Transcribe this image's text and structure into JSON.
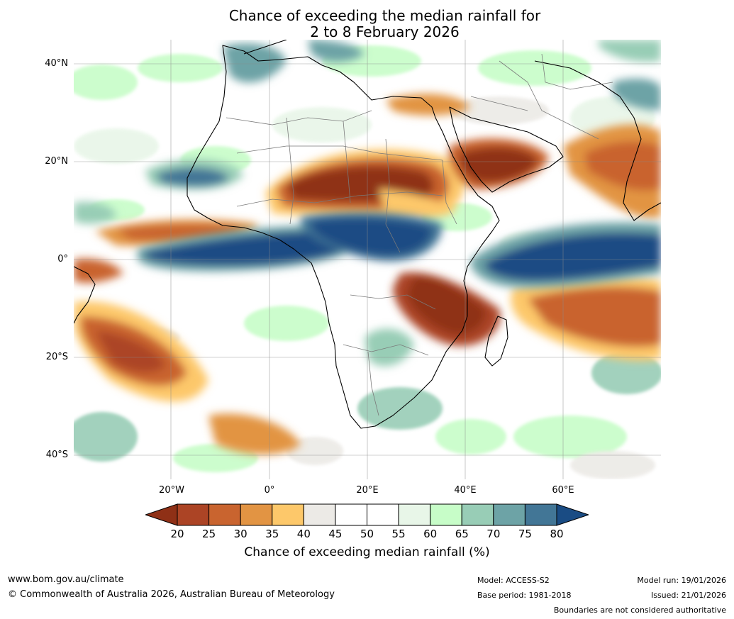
{
  "title": {
    "line1": "Chance of exceeding the median rainfall for",
    "line2": "2 to 8 February 2026"
  },
  "axes": {
    "lat_labels": [
      "40°N",
      "20°N",
      "0°",
      "20°S",
      "40°S"
    ],
    "lon_labels": [
      "20°W",
      "0°",
      "20°E",
      "40°E",
      "60°E"
    ]
  },
  "colorbar": {
    "ticks": [
      "20",
      "25",
      "30",
      "35",
      "40",
      "45",
      "50",
      "55",
      "60",
      "65",
      "70",
      "75",
      "80"
    ],
    "colors": [
      "#8f3016",
      "#ac4425",
      "#c9642f",
      "#e29443",
      "#fdc86a",
      "#eceae6",
      "#ffffff",
      "#ffffff",
      "#e8f6e8",
      "#c7fdc8",
      "#98cdb6",
      "#6da3a6",
      "#427696",
      "#1a4c84"
    ],
    "title": "Chance of exceeding median rainfall (%)"
  },
  "footer": {
    "website": "www.bom.gov.au/climate",
    "copyright": "© Commonwealth of Australia 2026, Australian Bureau of Meteorology",
    "model": "Model: ACCESS-S2",
    "base_period": "Base period: 1981-2018",
    "model_run": "Model run: 19/01/2026",
    "issued": "Issued: 21/01/2026",
    "boundaries": "Boundaries are not considered authoritative"
  }
}
